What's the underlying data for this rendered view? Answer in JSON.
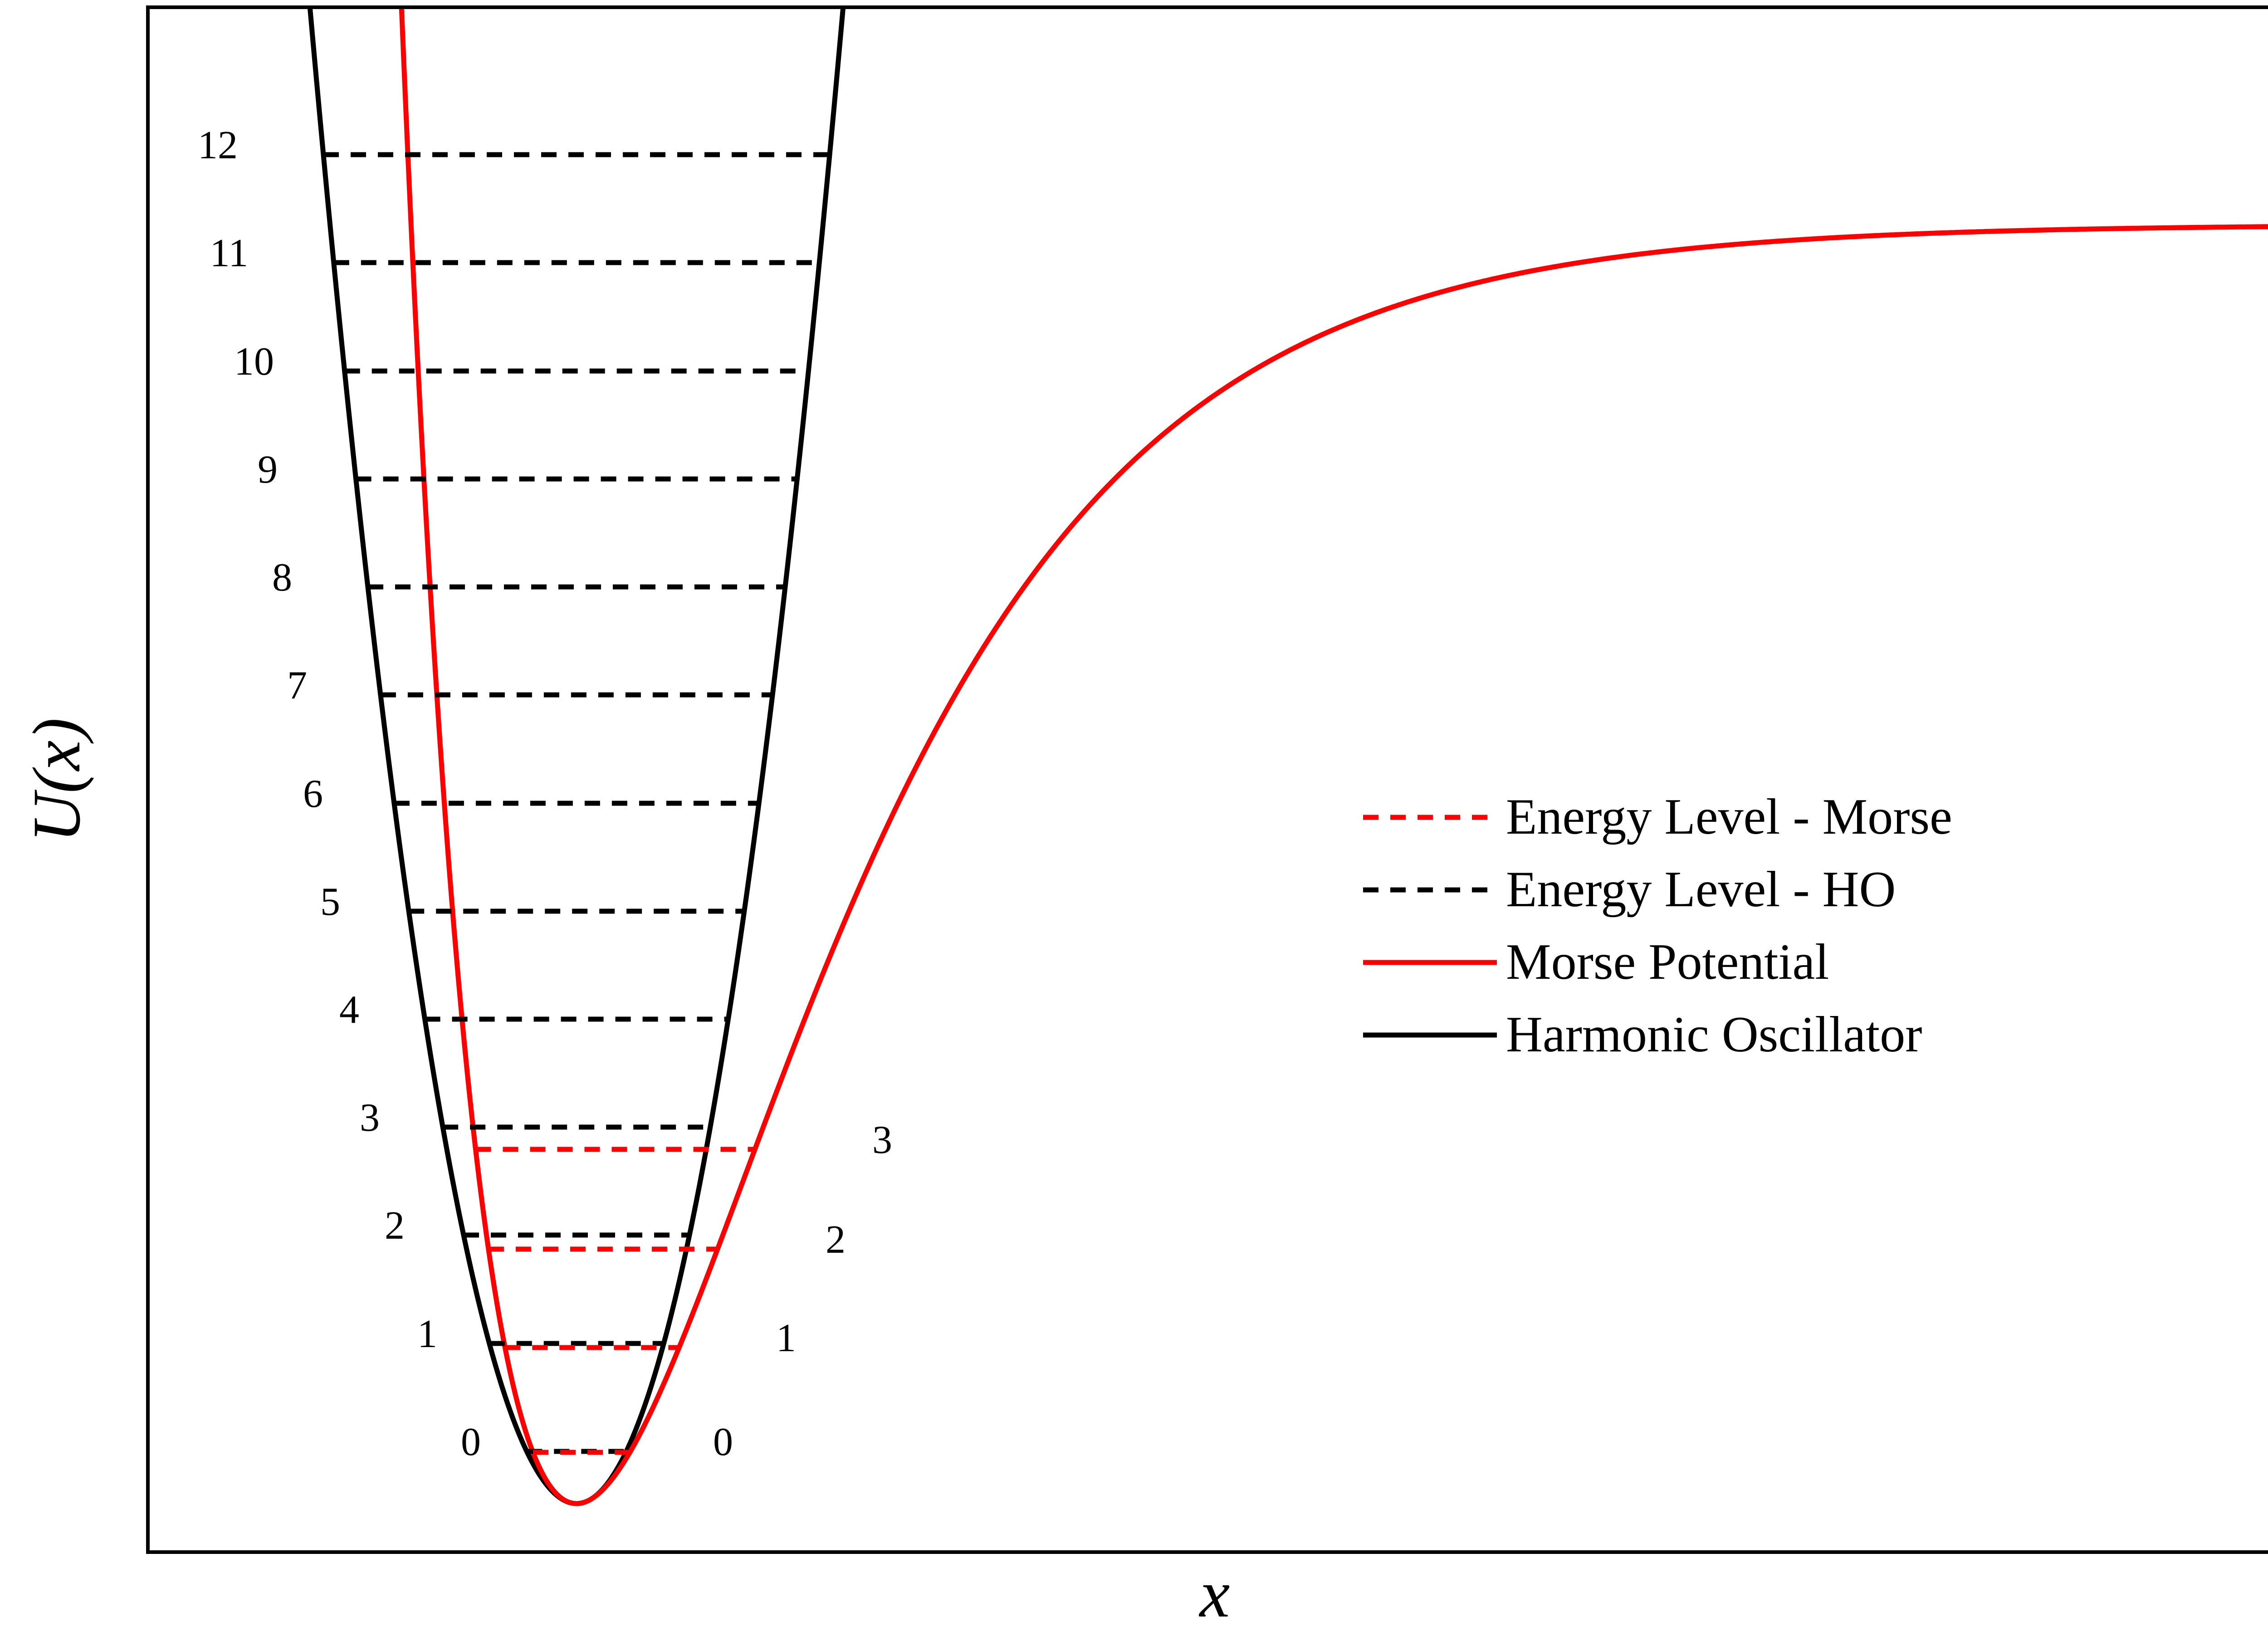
{
  "chart_data": {
    "type": "line",
    "title": "",
    "xlabel": "x",
    "ylabel": "U(x)",
    "xticks": [],
    "yticks": [],
    "grid": false,
    "legend_position": "center-right",
    "legend": [
      {
        "label": "Energy Level - Morse",
        "style": "dashed",
        "color": "#ff0000"
      },
      {
        "label": "Energy Level - HO",
        "style": "dashed",
        "color": "#000000"
      },
      {
        "label": "Morse Potential",
        "style": "solid",
        "color": "#ff0000"
      },
      {
        "label": "Harmonic Oscillator",
        "style": "solid",
        "color": "#000000"
      }
    ],
    "series": [
      {
        "name": "Morse Potential",
        "color": "#ff0000",
        "style": "solid"
      },
      {
        "name": "Harmonic Oscillator",
        "color": "#000000",
        "style": "solid"
      }
    ],
    "ho_levels": [
      "0",
      "1",
      "2",
      "3",
      "4",
      "5",
      "6",
      "7",
      "8",
      "9",
      "10",
      "11",
      "12"
    ],
    "morse_levels": [
      "0",
      "1",
      "2",
      "3"
    ]
  }
}
